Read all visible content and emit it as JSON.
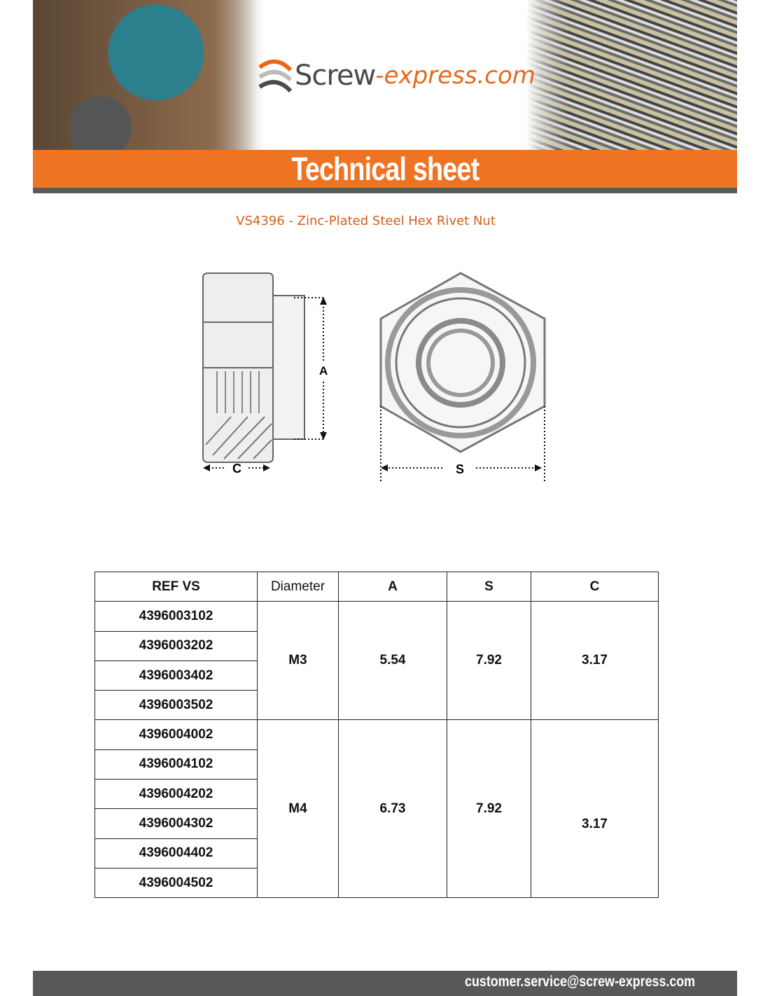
{
  "header": {
    "logo_main": "Screw",
    "logo_accent": "-express.com",
    "banner_title": "Technical sheet"
  },
  "product_title": "VS4396 - Zinc-Plated Steel Hex Rivet Nut",
  "drawing": {
    "label_a": "A",
    "label_c": "C",
    "label_s": "S"
  },
  "table": {
    "headers": [
      "REF VS",
      "Diameter",
      "A",
      "S",
      "C"
    ],
    "groups": [
      {
        "refs": [
          "4396003102",
          "4396003202",
          "4396003402",
          "4396003502"
        ],
        "diameter": "M3",
        "a": "5.54",
        "s": "7.92",
        "c": "3.17"
      },
      {
        "refs": [
          "4396004002",
          "4396004102",
          "4396004202",
          "4396004302",
          "4396004402",
          "4396004502"
        ],
        "diameter": "M4",
        "a": "6.73",
        "s": "7.92",
        "c": "3.17"
      }
    ]
  },
  "footer": {
    "email": "customer.service@screw-express.com"
  },
  "colors": {
    "accent": "#ee7322",
    "dark": "#58585a"
  }
}
